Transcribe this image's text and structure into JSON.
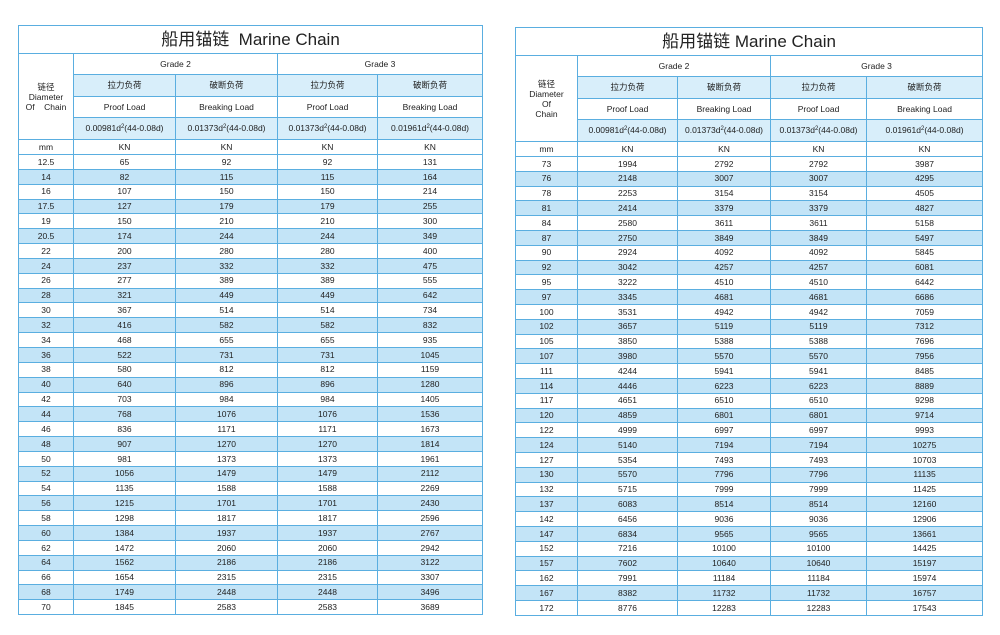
{
  "tables": [
    {
      "title": "船用锚链  Marine Chain",
      "diameter_header": [
        "链径",
        "Diameter",
        "Of    Chain"
      ],
      "grades": [
        "Grade 2",
        "Grade 3"
      ],
      "chinese_headers": [
        "拉力负荷",
        "破断负荷",
        "拉力负荷",
        "破断负荷"
      ],
      "english_headers": [
        "Proof Load",
        "Breaking Load",
        "Proof Load",
        "Breaking Load"
      ],
      "formulas": [
        {
          "base": "0.00981d",
          "exponent": "2",
          "rest": "(44-0.08d)"
        },
        {
          "base": "0.01373d",
          "exponent": "2",
          "rest": "(44-0.08d)"
        },
        {
          "base": "0.01373d",
          "exponent": "2",
          "rest": "(44-0.08d)"
        },
        {
          "base": "0.01961d",
          "exponent": "2",
          "rest": "(44-0.08d)"
        }
      ],
      "units": [
        "mm",
        "KN",
        "KN",
        "KN",
        "KN"
      ],
      "rows": [
        [
          12.5,
          65,
          92,
          92,
          131
        ],
        [
          14,
          82,
          115,
          115,
          164
        ],
        [
          16,
          107,
          150,
          150,
          214
        ],
        [
          17.5,
          127,
          179,
          179,
          255
        ],
        [
          19,
          150,
          210,
          210,
          300
        ],
        [
          20.5,
          174,
          244,
          244,
          349
        ],
        [
          22,
          200,
          280,
          280,
          400
        ],
        [
          24,
          237,
          332,
          332,
          475
        ],
        [
          26,
          277,
          389,
          389,
          555
        ],
        [
          28,
          321,
          449,
          449,
          642
        ],
        [
          30,
          367,
          514,
          514,
          734
        ],
        [
          32,
          416,
          582,
          582,
          832
        ],
        [
          34,
          468,
          655,
          655,
          935
        ],
        [
          36,
          522,
          731,
          731,
          1045
        ],
        [
          38,
          580,
          812,
          812,
          1159
        ],
        [
          40,
          640,
          896,
          896,
          1280
        ],
        [
          42,
          703,
          984,
          984,
          1405
        ],
        [
          44,
          768,
          1076,
          1076,
          1536
        ],
        [
          46,
          836,
          1171,
          1171,
          1673
        ],
        [
          48,
          907,
          1270,
          1270,
          1814
        ],
        [
          50,
          981,
          1373,
          1373,
          1961
        ],
        [
          52,
          1056,
          1479,
          1479,
          2112
        ],
        [
          54,
          1135,
          1588,
          1588,
          2269
        ],
        [
          56,
          1215,
          1701,
          1701,
          2430
        ],
        [
          58,
          1298,
          1817,
          1817,
          2596
        ],
        [
          60,
          1384,
          1937,
          1937,
          2767
        ],
        [
          62,
          1472,
          2060,
          2060,
          2942
        ],
        [
          64,
          1562,
          2186,
          2186,
          3122
        ],
        [
          66,
          1654,
          2315,
          2315,
          3307
        ],
        [
          68,
          1749,
          2448,
          2448,
          3496
        ],
        [
          70,
          1845,
          2583,
          2583,
          3689
        ]
      ]
    },
    {
      "title": "船用锚链 Marine Chain",
      "diameter_header": [
        "链径",
        "Diameter",
        "Of",
        "Chain"
      ],
      "grades": [
        "Grade 2",
        "Grade 3"
      ],
      "chinese_headers": [
        "拉力负荷",
        "破断负荷",
        "拉力负荷",
        "破断负荷"
      ],
      "english_headers": [
        "Proof Load",
        "Breaking Load",
        "Proof Load",
        "Breaking Load"
      ],
      "formulas": [
        {
          "base": "0.00981d",
          "exponent": "2",
          "rest": "(44-0.08d)"
        },
        {
          "base": "0.01373d",
          "exponent": "2",
          "rest": "(44-0.08d)"
        },
        {
          "base": "0.01373d",
          "exponent": "2",
          "rest": "(44-0.08d)"
        },
        {
          "base": "0.01961d",
          "exponent": "2",
          "rest": "(44-0.08d)"
        }
      ],
      "units": [
        "mm",
        "KN",
        "KN",
        "KN",
        "KN"
      ],
      "rows": [
        [
          73,
          1994,
          2792,
          2792,
          3987
        ],
        [
          76,
          2148,
          3007,
          3007,
          4295
        ],
        [
          78,
          2253,
          3154,
          3154,
          4505
        ],
        [
          81,
          2414,
          3379,
          3379,
          4827
        ],
        [
          84,
          2580,
          3611,
          3611,
          5158
        ],
        [
          87,
          2750,
          3849,
          3849,
          5497
        ],
        [
          90,
          2924,
          4092,
          4092,
          5845
        ],
        [
          92,
          3042,
          4257,
          4257,
          6081
        ],
        [
          95,
          3222,
          4510,
          4510,
          6442
        ],
        [
          97,
          3345,
          4681,
          4681,
          6686
        ],
        [
          100,
          3531,
          4942,
          4942,
          7059
        ],
        [
          102,
          3657,
          5119,
          5119,
          7312
        ],
        [
          105,
          3850,
          5388,
          5388,
          7696
        ],
        [
          107,
          3980,
          5570,
          5570,
          7956
        ],
        [
          111,
          4244,
          5941,
          5941,
          8485
        ],
        [
          114,
          4446,
          6223,
          6223,
          8889
        ],
        [
          117,
          4651,
          6510,
          6510,
          9298
        ],
        [
          120,
          4859,
          6801,
          6801,
          9714
        ],
        [
          122,
          4999,
          6997,
          6997,
          9993
        ],
        [
          124,
          5140,
          7194,
          7194,
          10275
        ],
        [
          127,
          5354,
          7493,
          7493,
          10703
        ],
        [
          130,
          5570,
          7796,
          7796,
          11135
        ],
        [
          132,
          5715,
          7999,
          7999,
          11425
        ],
        [
          137,
          6083,
          8514,
          8514,
          12160
        ],
        [
          142,
          6456,
          9036,
          9036,
          12906
        ],
        [
          147,
          6834,
          9565,
          9565,
          13661
        ],
        [
          152,
          7216,
          10100,
          10100,
          14425
        ],
        [
          157,
          7602,
          10640,
          10640,
          15197
        ],
        [
          162,
          7991,
          11184,
          11184,
          15974
        ],
        [
          167,
          8382,
          11732,
          11732,
          16757
        ],
        [
          172,
          8776,
          12283,
          12283,
          17543
        ]
      ]
    }
  ]
}
